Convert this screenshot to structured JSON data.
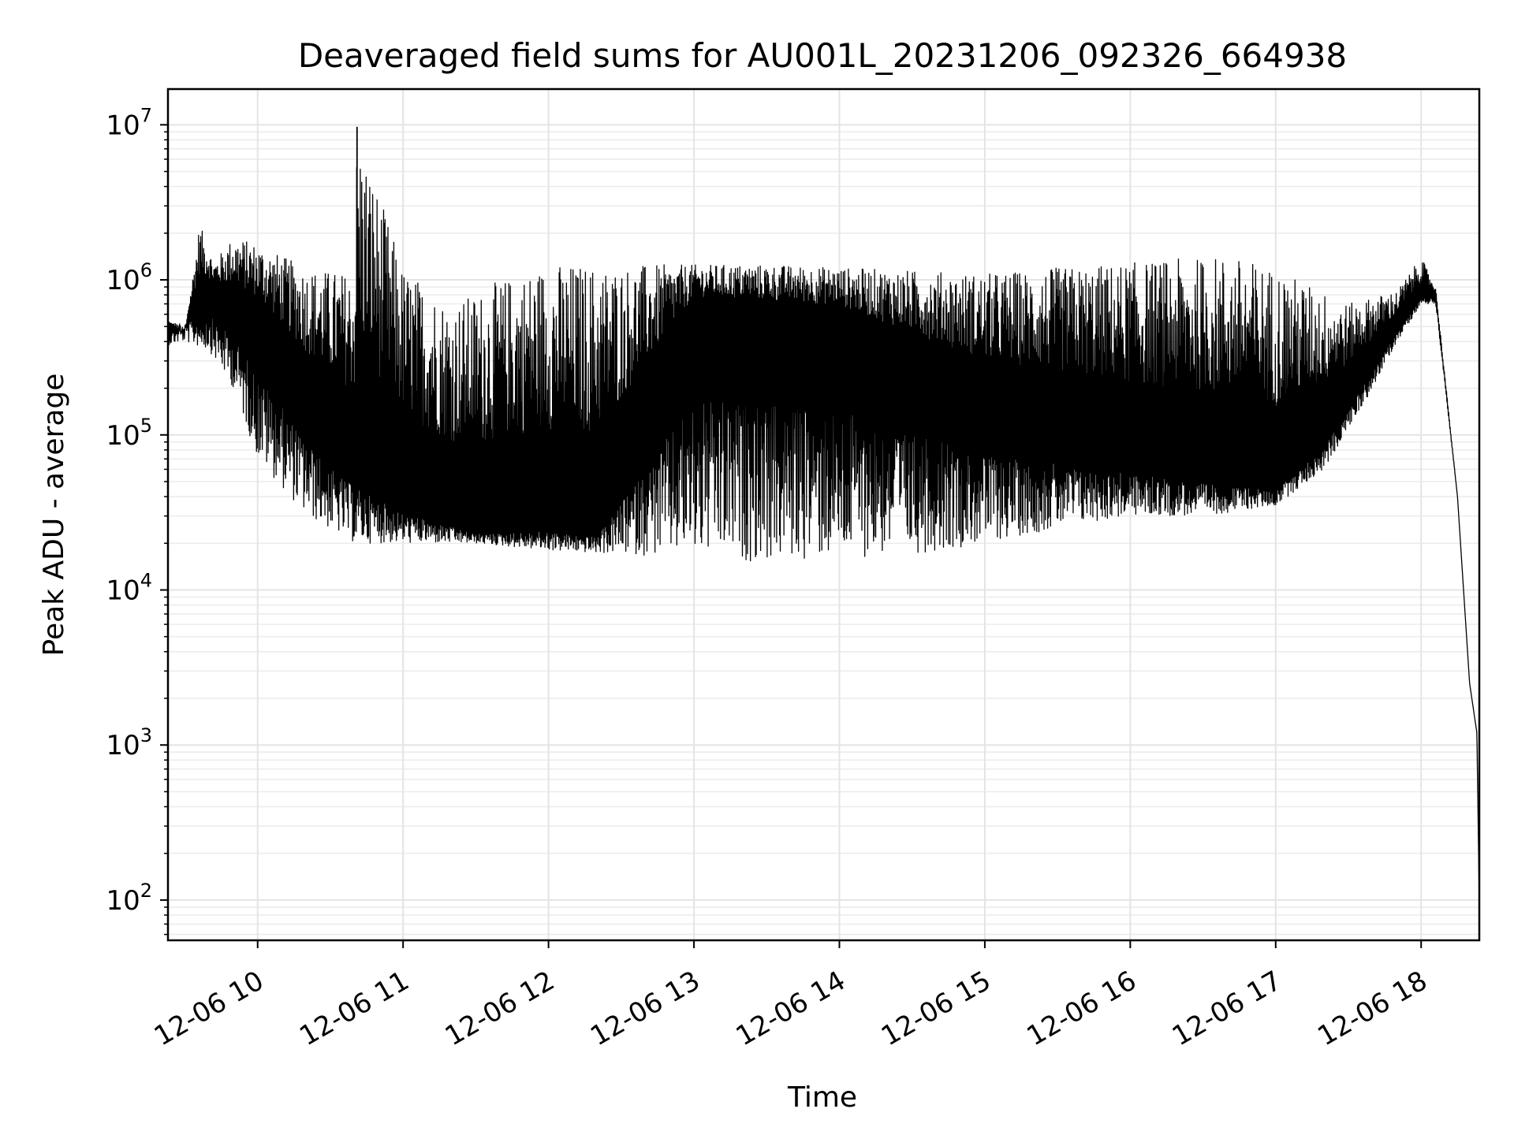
{
  "chart_data": {
    "type": "line",
    "title": "Deaveraged field sums for AU001L_20231206_092326_664938",
    "xlabel": "Time",
    "ylabel": "Peak ADU - average",
    "yscale": "log",
    "ylim": [
      55,
      17000000
    ],
    "xlim": [
      "2023-12-06 09:23",
      "2023-12-06 18:24"
    ],
    "grid": true,
    "legend": "none",
    "line_color": "#000000",
    "x_ticks": [
      {
        "value": "2023-12-06 10:00",
        "label": "12-06 10"
      },
      {
        "value": "2023-12-06 11:00",
        "label": "12-06 11"
      },
      {
        "value": "2023-12-06 12:00",
        "label": "12-06 12"
      },
      {
        "value": "2023-12-06 13:00",
        "label": "12-06 13"
      },
      {
        "value": "2023-12-06 14:00",
        "label": "12-06 14"
      },
      {
        "value": "2023-12-06 15:00",
        "label": "12-06 15"
      },
      {
        "value": "2023-12-06 16:00",
        "label": "12-06 16"
      },
      {
        "value": "2023-12-06 17:00",
        "label": "12-06 17"
      },
      {
        "value": "2023-12-06 18:00",
        "label": "12-06 18"
      }
    ],
    "y_ticks": [
      {
        "value": 100,
        "base": "10",
        "exp": "2"
      },
      {
        "value": 1000,
        "base": "10",
        "exp": "3"
      },
      {
        "value": 10000,
        "base": "10",
        "exp": "4"
      },
      {
        "value": 100000,
        "base": "10",
        "exp": "5"
      },
      {
        "value": 1000000,
        "base": "10",
        "exp": "6"
      },
      {
        "value": 10000000,
        "base": "10",
        "exp": "7"
      }
    ],
    "series": [
      {
        "peaks": [
          {
            "x": "2023-12-06 09:23",
            "y": 550000
          },
          {
            "x": "2023-12-06 09:30",
            "y": 430000
          },
          {
            "x": "2023-12-06 09:36",
            "y": 2300000
          },
          {
            "x": "2023-12-06 09:42",
            "y": 1300000
          },
          {
            "x": "2023-12-06 09:50",
            "y": 1900000
          },
          {
            "x": "2023-12-06 10:00",
            "y": 1700000
          },
          {
            "x": "2023-12-06 10:20",
            "y": 1200000
          },
          {
            "x": "2023-12-06 10:40",
            "y": 1100000
          },
          {
            "x": "2023-12-06 10:41",
            "y": 9700000
          },
          {
            "x": "2023-12-06 11:00",
            "y": 1200000
          },
          {
            "x": "2023-12-06 11:20",
            "y": 700000
          },
          {
            "x": "2023-12-06 11:40",
            "y": 1000000
          },
          {
            "x": "2023-12-06 12:00",
            "y": 1300000
          },
          {
            "x": "2023-12-06 12:30",
            "y": 1250000
          },
          {
            "x": "2023-12-06 13:00",
            "y": 1250000
          },
          {
            "x": "2023-12-06 13:30",
            "y": 1250000
          },
          {
            "x": "2023-12-06 14:00",
            "y": 1200000
          },
          {
            "x": "2023-12-06 14:30",
            "y": 1150000
          },
          {
            "x": "2023-12-06 15:00",
            "y": 1100000
          },
          {
            "x": "2023-12-06 15:30",
            "y": 1200000
          },
          {
            "x": "2023-12-06 16:00",
            "y": 1300000
          },
          {
            "x": "2023-12-06 16:30",
            "y": 1400000
          },
          {
            "x": "2023-12-06 16:40",
            "y": 1450000
          },
          {
            "x": "2023-12-06 17:00",
            "y": 1200000
          },
          {
            "x": "2023-12-06 17:30",
            "y": 700000
          },
          {
            "x": "2023-12-06 17:50",
            "y": 850000
          },
          {
            "x": "2023-12-06 18:00",
            "y": 1400000
          },
          {
            "x": "2023-12-06 18:06",
            "y": 900000
          },
          {
            "x": "2023-12-06 18:15",
            "y": 40000
          },
          {
            "x": "2023-12-06 18:20",
            "y": 2500
          },
          {
            "x": "2023-12-06 18:23",
            "y": 1200
          },
          {
            "x": "2023-12-06 18:24",
            "y": 95
          }
        ],
        "troughs": [
          {
            "x": "2023-12-06 09:23",
            "y": 380000
          },
          {
            "x": "2023-12-06 09:30",
            "y": 400000
          },
          {
            "x": "2023-12-06 09:40",
            "y": 350000
          },
          {
            "x": "2023-12-06 09:50",
            "y": 200000
          },
          {
            "x": "2023-12-06 10:00",
            "y": 70000
          },
          {
            "x": "2023-12-06 10:20",
            "y": 30000
          },
          {
            "x": "2023-12-06 10:40",
            "y": 20000
          },
          {
            "x": "2023-12-06 11:00",
            "y": 20000
          },
          {
            "x": "2023-12-06 11:30",
            "y": 20000
          },
          {
            "x": "2023-12-06 12:00",
            "y": 18000
          },
          {
            "x": "2023-12-06 12:30",
            "y": 17000
          },
          {
            "x": "2023-12-06 13:00",
            "y": 16000
          },
          {
            "x": "2023-12-06 13:30",
            "y": 15000
          },
          {
            "x": "2023-12-06 14:00",
            "y": 16000
          },
          {
            "x": "2023-12-06 14:30",
            "y": 17000
          },
          {
            "x": "2023-12-06 15:00",
            "y": 20000
          },
          {
            "x": "2023-12-06 15:30",
            "y": 25000
          },
          {
            "x": "2023-12-06 16:00",
            "y": 30000
          },
          {
            "x": "2023-12-06 16:30",
            "y": 30000
          },
          {
            "x": "2023-12-06 17:00",
            "y": 35000
          },
          {
            "x": "2023-12-06 17:20",
            "y": 60000
          },
          {
            "x": "2023-12-06 17:40",
            "y": 200000
          },
          {
            "x": "2023-12-06 17:50",
            "y": 400000
          },
          {
            "x": "2023-12-06 18:00",
            "y": 700000
          },
          {
            "x": "2023-12-06 18:06",
            "y": 700000
          },
          {
            "x": "2023-12-06 18:15",
            "y": 40000
          },
          {
            "x": "2023-12-06 18:20",
            "y": 2500
          },
          {
            "x": "2023-12-06 18:23",
            "y": 1200
          },
          {
            "x": "2023-12-06 18:24",
            "y": 95
          }
        ],
        "baseline": [
          {
            "x": "2023-12-06 09:23",
            "y": 500000
          },
          {
            "x": "2023-12-06 09:40",
            "y": 800000
          },
          {
            "x": "2023-12-06 10:00",
            "y": 500000
          },
          {
            "x": "2023-12-06 10:30",
            "y": 100000
          },
          {
            "x": "2023-12-06 11:00",
            "y": 40000
          },
          {
            "x": "2023-12-06 11:30",
            "y": 25000
          },
          {
            "x": "2023-12-06 12:00",
            "y": 28000
          },
          {
            "x": "2023-12-06 12:20",
            "y": 25000
          },
          {
            "x": "2023-12-06 13:00",
            "y": 600000
          },
          {
            "x": "2023-12-06 14:00",
            "y": 500000
          },
          {
            "x": "2023-12-06 15:00",
            "y": 150000
          },
          {
            "x": "2023-12-06 16:00",
            "y": 80000
          },
          {
            "x": "2023-12-06 17:00",
            "y": 50000
          },
          {
            "x": "2023-12-06 17:20",
            "y": 100000
          },
          {
            "x": "2023-12-06 17:40",
            "y": 300000
          },
          {
            "x": "2023-12-06 18:00",
            "y": 800000
          },
          {
            "x": "2023-12-06 18:06",
            "y": 800000
          },
          {
            "x": "2023-12-06 18:15",
            "y": 40000
          },
          {
            "x": "2023-12-06 18:20",
            "y": 2500
          },
          {
            "x": "2023-12-06 18:23",
            "y": 1200
          },
          {
            "x": "2023-12-06 18:24",
            "y": 95
          }
        ],
        "spike": {
          "x": "2023-12-06 10:41",
          "y": 9700000
        }
      }
    ]
  }
}
